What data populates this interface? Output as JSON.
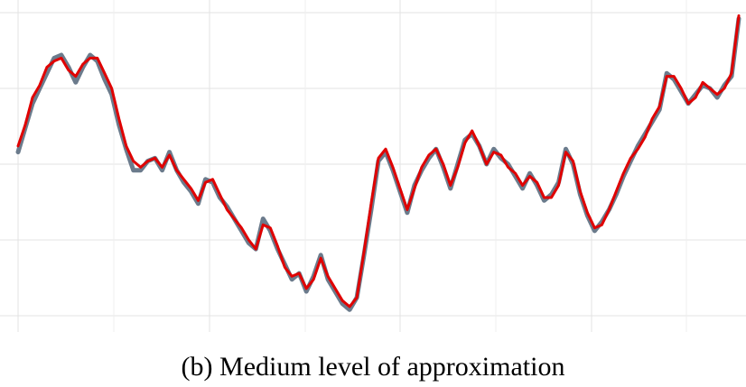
{
  "caption": "(b) Medium level of approximation",
  "colors": {
    "original": "#6b7b8c",
    "approximation": "#e00000",
    "grid": "#e3e3e3",
    "background": "#ffffff"
  },
  "chart_data": {
    "type": "line",
    "title": "",
    "xlabel": "",
    "ylabel": "",
    "xlim": [
      0,
      100
    ],
    "ylim": [
      0,
      100
    ],
    "grid": true,
    "legend": "none",
    "x": [
      0,
      1,
      2,
      3,
      4,
      5,
      6,
      7,
      8,
      9,
      10,
      11,
      12,
      13,
      14,
      15,
      16,
      17,
      18,
      19,
      20,
      21,
      22,
      23,
      24,
      25,
      26,
      27,
      28,
      29,
      30,
      31,
      32,
      33,
      34,
      35,
      36,
      37,
      38,
      39,
      40,
      41,
      42,
      43,
      44,
      45,
      46,
      47,
      48,
      49,
      50,
      51,
      52,
      53,
      54,
      55,
      56,
      57,
      58,
      59,
      60,
      61,
      62,
      63,
      64,
      65,
      66,
      67,
      68,
      69,
      70,
      71,
      72,
      73,
      74,
      75,
      76,
      77,
      78,
      79,
      80,
      81,
      82,
      83,
      84,
      85,
      86,
      87,
      88,
      89,
      90,
      91,
      92,
      93,
      94,
      95,
      96,
      97,
      98,
      99,
      100
    ],
    "series": [
      {
        "values": [
          54,
          62,
          70,
          75,
          80,
          85,
          86,
          82,
          77,
          82,
          86,
          84,
          78,
          73,
          63,
          55,
          48,
          48,
          51,
          52,
          48,
          54,
          48,
          44,
          41,
          37,
          45,
          44,
          39,
          36,
          32,
          28,
          24,
          22,
          32,
          28,
          22,
          17,
          12,
          14,
          8,
          13,
          20,
          12,
          8,
          4,
          2,
          6,
          20,
          35,
          51,
          54,
          48,
          41,
          34,
          43,
          48,
          52,
          55,
          49,
          42,
          50,
          58,
          60,
          56,
          50,
          55,
          52,
          50,
          46,
          42,
          47,
          43,
          38,
          40,
          44,
          55,
          50,
          40,
          33,
          28,
          31,
          35,
          40,
          46,
          51,
          56,
          60,
          64,
          68,
          80,
          78,
          74,
          70,
          73,
          76,
          75,
          72,
          76,
          79,
          98
        ]
      },
      {
        "values": [
          56,
          63,
          72,
          76,
          82,
          84,
          85,
          81,
          79,
          83,
          85,
          85,
          80,
          75,
          65,
          56,
          51,
          49,
          51,
          52,
          49,
          53,
          48,
          45,
          42,
          38,
          44,
          45,
          40,
          35,
          32,
          29,
          25,
          22,
          30,
          29,
          23,
          16,
          13,
          14,
          9,
          12,
          19,
          13,
          9,
          5,
          3,
          6,
          21,
          37,
          52,
          55,
          49,
          42,
          35,
          42,
          49,
          53,
          55,
          50,
          43,
          49,
          57,
          61,
          56,
          50,
          54,
          53,
          49,
          47,
          43,
          46,
          44,
          39,
          39,
          43,
          54,
          51,
          41,
          34,
          29,
          30,
          35,
          41,
          47,
          52,
          55,
          59,
          65,
          69,
          79,
          79,
          75,
          70,
          72,
          77,
          75,
          73,
          75,
          80,
          99
        ]
      }
    ]
  }
}
